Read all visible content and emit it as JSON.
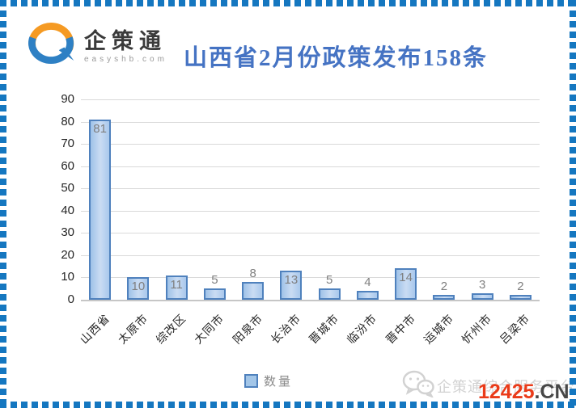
{
  "logo": {
    "brand": "企策通",
    "domain": "easyshb.com",
    "icon": "q-swoosh-icon"
  },
  "title": "山西省2月份政策发布158条",
  "chart_data": {
    "type": "bar",
    "title": "山西省2月份政策发布158条",
    "categories": [
      "山西省",
      "太原市",
      "综改区",
      "大同市",
      "阳泉市",
      "长治市",
      "晋城市",
      "临汾市",
      "晋中市",
      "运城市",
      "忻州市",
      "吕梁市"
    ],
    "series": [
      {
        "name": "数量",
        "values": [
          81,
          10,
          11,
          5,
          8,
          13,
          5,
          4,
          14,
          2,
          3,
          2
        ]
      }
    ],
    "xlabel": "",
    "ylabel": "",
    "ylim": [
      0,
      90
    ],
    "ytick_step": 10,
    "grid": true,
    "legend_position": "bottom-center",
    "data_labels": true,
    "colors": {
      "bar_fill": "#b7cfec",
      "bar_border": "#4f81bd",
      "value_label": "#7f7f7f",
      "gridline": "#d9d9d9",
      "axis_text": "#262626",
      "title": "#4573c3"
    }
  },
  "legend": {
    "label": "数量"
  },
  "footer": {
    "watermark_text": "企策通综合服务平台",
    "site_number": "12425",
    "site_suffix": ".CN",
    "icon": "wechat-icon"
  },
  "frame": {
    "dash_color": "#1577c0"
  }
}
